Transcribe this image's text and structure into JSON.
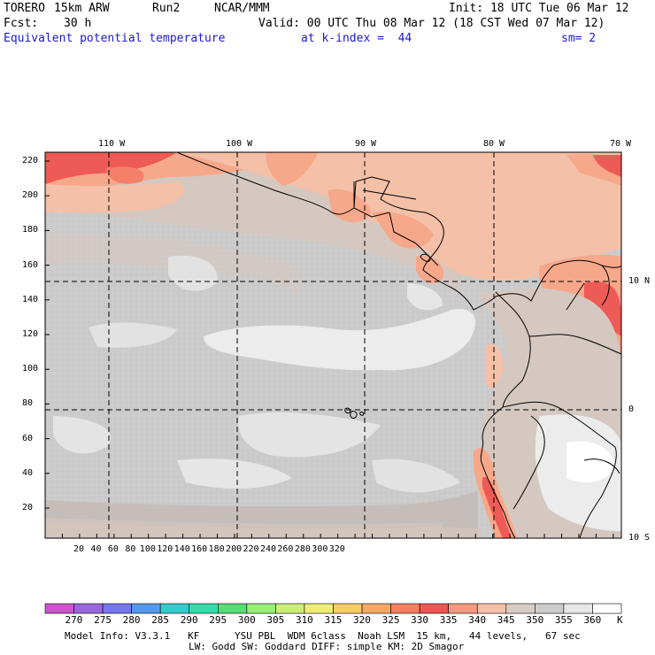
{
  "header": {
    "model": "TORERO",
    "resolution": "15km ARW",
    "run": "Run2",
    "org": "NCAR/MMM",
    "init": "Init: 18 UTC Tue 06 Mar 12",
    "fcst_label": "Fcst:",
    "fcst_value": "30 h",
    "valid": "Valid: 00 UTC Thu 08 Mar 12 (18 CST Wed 07 Mar 12)",
    "field": "Equivalent potential temperature",
    "level": "at k-index =  44",
    "smoothing": "sm= 2"
  },
  "axes": {
    "top_lon": [
      "110 W",
      "100 W",
      "90 W",
      "80 W",
      "70 W"
    ],
    "right_lat": [
      "10 N",
      "0",
      "10 S"
    ],
    "left_y": [
      "220",
      "200",
      "180",
      "160",
      "140",
      "120",
      "100",
      "80",
      "60",
      "40",
      "20"
    ],
    "bottom_x": [
      "20",
      "40",
      "60",
      "80",
      "100",
      "120",
      "140",
      "160",
      "180",
      "200",
      "220",
      "240",
      "260",
      "280",
      "300",
      "320"
    ]
  },
  "colorbar": {
    "unit": "K",
    "levels": [
      "270",
      "275",
      "280",
      "285",
      "290",
      "295",
      "300",
      "305",
      "310",
      "315",
      "320",
      "325",
      "330",
      "335",
      "340",
      "345",
      "350",
      "355",
      "360"
    ],
    "colors": [
      "#cc55cc",
      "#9966dd",
      "#7777ee",
      "#5599ee",
      "#33cccc",
      "#33ddaa",
      "#55dd77",
      "#99ee77",
      "#ccee77",
      "#eeee77",
      "#f7cc66",
      "#f7a866",
      "#f48060",
      "#ee5555",
      "#f79980",
      "#f4c0a8",
      "#d8ccc4",
      "#cccccc",
      "#e8e8e8",
      "#ffffff"
    ]
  },
  "footer": {
    "line1": "Model Info: V3.3.1   KF      YSU PBL  WDM 6class  Noah LSM  15 km,   44 levels,   67 sec",
    "line2": "LW: Godd SW: Goddard DIFF: simple KM: 2D Smagor"
  }
}
